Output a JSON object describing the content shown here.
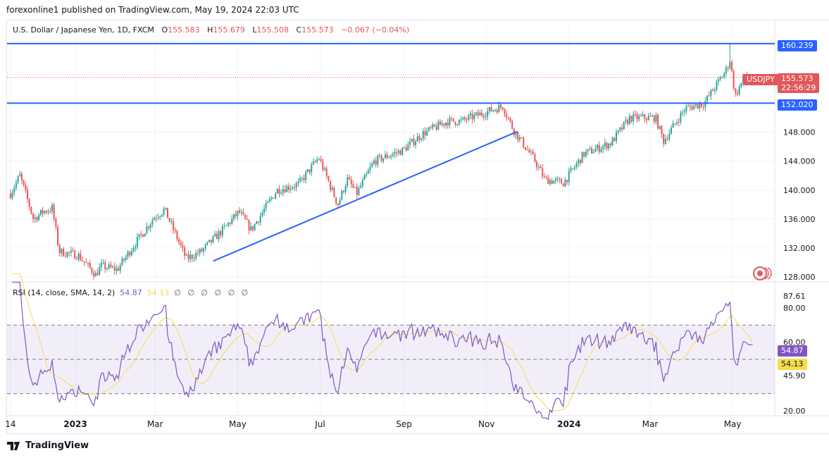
{
  "header": {
    "published": "forexonline1 published on TradingView.com, May 19, 2024 22:03 UTC"
  },
  "legend": {
    "symbol": "U.S. Dollar / Japanese Yen, 1D, FXCM",
    "o_label": "O",
    "o": "155.583",
    "h_label": "H",
    "h": "155.679",
    "l_label": "L",
    "l": "155.508",
    "c_label": "C",
    "c": "155.573",
    "change": "−0.067 (−0.04%)"
  },
  "rsi_legend": {
    "title": "RSI (14, close, SMA, 14, 2)",
    "rsi": "54.87",
    "sma": "54.13",
    "empty": "∅ ∅ ∅ ∅ ∅ ∅"
  },
  "tags": {
    "upper_level": "160.239",
    "lower_level": "152.020",
    "symbol": "USDJPY",
    "price": "155.573",
    "countdown": "22:56:29",
    "rsi": "54.87",
    "rsi_sma": "54.13",
    "rsi_max": "87.61",
    "rsi_min": "45.90"
  },
  "colors": {
    "up": "#26a69a",
    "down": "#ef5350",
    "level": "#2962ff",
    "rsi": "#7e57c2",
    "rsi_sma": "#f7dc4e",
    "tag_red": "#e2575a",
    "tag_blue": "#2962ff"
  },
  "footer": {
    "brand": "TradingView"
  },
  "chart_data": {
    "type": "candlestick",
    "price_axis_ticks": [
      "128.000",
      "132.000",
      "136.000",
      "140.000",
      "144.000",
      "148.000"
    ],
    "rsi_axis_ticks": [
      "20.00",
      "60.00",
      "80.00"
    ],
    "rsi_bands": [
      30,
      50,
      70
    ],
    "time_axis_ticks": [
      {
        "label": "14",
        "date": "2022-11-14"
      },
      {
        "label": "2023",
        "date": "2023-01-01"
      },
      {
        "label": "Mar",
        "date": "2023-03-01"
      },
      {
        "label": "May",
        "date": "2023-05-01"
      },
      {
        "label": "Jul",
        "date": "2023-07-01"
      },
      {
        "label": "Sep",
        "date": "2023-09-01"
      },
      {
        "label": "Nov",
        "date": "2023-11-01"
      },
      {
        "label": "2024",
        "date": "2024-01-01"
      },
      {
        "label": "Mar",
        "date": "2024-03-01"
      },
      {
        "label": "May",
        "date": "2024-05-01"
      }
    ],
    "horizontal_levels": [
      160.239,
      152.02
    ],
    "trendline": [
      {
        "date": "2023-04-13",
        "price": 130.2
      },
      {
        "date": "2023-11-24",
        "price": 148.1
      }
    ],
    "approx_closes": [
      [
        "2022-11-14",
        139.5
      ],
      [
        "2022-11-21",
        142
      ],
      [
        "2022-12-01",
        136
      ],
      [
        "2022-12-08",
        137
      ],
      [
        "2022-12-15",
        137.5
      ],
      [
        "2022-12-20",
        131.5
      ],
      [
        "2023-01-03",
        131
      ],
      [
        "2023-01-16",
        128.3
      ],
      [
        "2023-01-20",
        129.5
      ],
      [
        "2023-02-01",
        129
      ],
      [
        "2023-02-10",
        131.5
      ],
      [
        "2023-02-28",
        136.2
      ],
      [
        "2023-03-08",
        137.3
      ],
      [
        "2023-03-24",
        130.5
      ],
      [
        "2023-04-04",
        131.5
      ],
      [
        "2023-04-20",
        134.5
      ],
      [
        "2023-05-02",
        137
      ],
      [
        "2023-05-11",
        134.5
      ],
      [
        "2023-05-30",
        140
      ],
      [
        "2023-06-15",
        140.8
      ],
      [
        "2023-06-30",
        144.5
      ],
      [
        "2023-07-14",
        138
      ],
      [
        "2023-07-21",
        141.5
      ],
      [
        "2023-07-28",
        139.5
      ],
      [
        "2023-08-10",
        144
      ],
      [
        "2023-08-31",
        145.5
      ],
      [
        "2023-09-15",
        147.8
      ],
      [
        "2023-10-03",
        149.5
      ],
      [
        "2023-10-13",
        149.5
      ],
      [
        "2023-11-01",
        150.8
      ],
      [
        "2023-11-13",
        151.6
      ],
      [
        "2023-11-21",
        148.3
      ],
      [
        "2023-12-07",
        144
      ],
      [
        "2023-12-14",
        141.5
      ],
      [
        "2023-12-28",
        141
      ],
      [
        "2024-01-12",
        145
      ],
      [
        "2024-02-01",
        146.5
      ],
      [
        "2024-02-15",
        150
      ],
      [
        "2024-03-05",
        150
      ],
      [
        "2024-03-11",
        146.8
      ],
      [
        "2024-03-27",
        151.3
      ],
      [
        "2024-04-10",
        152
      ],
      [
        "2024-04-26",
        156.5
      ],
      [
        "2024-04-29",
        158
      ],
      [
        "2024-05-03",
        153
      ],
      [
        "2024-05-10",
        155.8
      ],
      [
        "2024-05-17",
        155.573
      ]
    ]
  }
}
